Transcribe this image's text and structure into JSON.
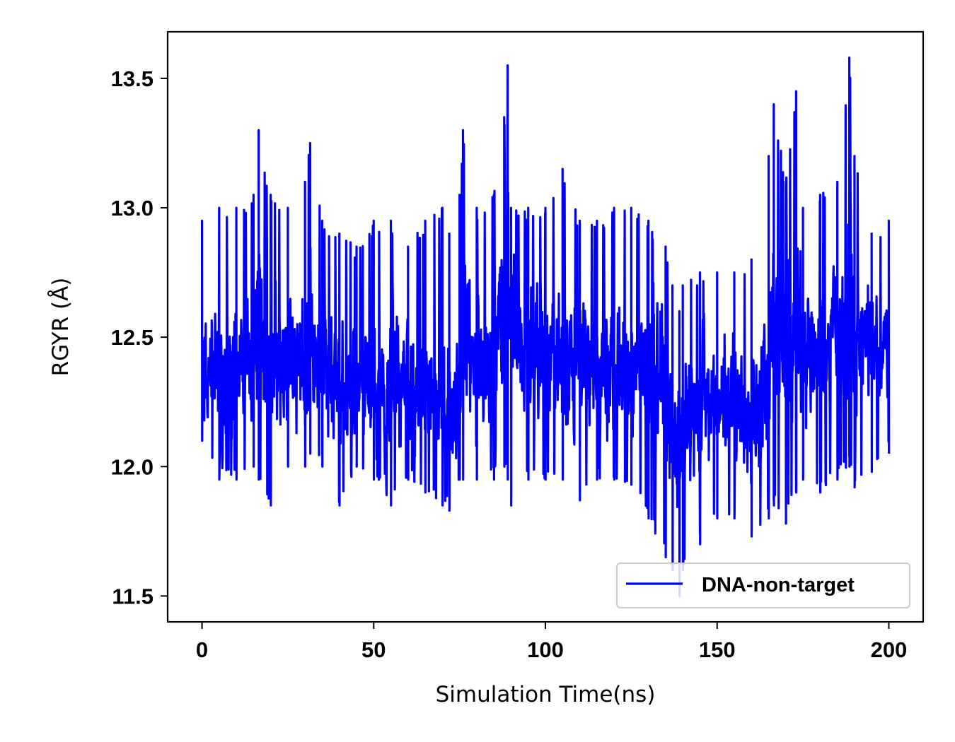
{
  "chart_data": {
    "type": "line",
    "title": "",
    "xlabel": "Simulation Time(ns)",
    "ylabel": "RGYR (Å)",
    "xlim": [
      -10,
      210
    ],
    "ylim": [
      11.4,
      13.68
    ],
    "x_ticks": [
      0,
      50,
      100,
      150,
      200
    ],
    "y_ticks": [
      11.5,
      12.0,
      12.5,
      13.0,
      13.5
    ],
    "x_tick_labels": [
      "0",
      "50",
      "100",
      "150",
      "200"
    ],
    "y_tick_labels": [
      "11.5",
      "12.0",
      "12.5",
      "13.0",
      "13.5"
    ],
    "grid": false,
    "legend_position": "lower-right",
    "series": [
      {
        "name": "DNA-non-target",
        "color": "#0000ff",
        "x": [
          0,
          5,
          10,
          15,
          16.5,
          20,
          25,
          30,
          31.5,
          35,
          40,
          45,
          50,
          55,
          60,
          65,
          70,
          72,
          75,
          76,
          80,
          85,
          88,
          89,
          90,
          95,
          100,
          105,
          110,
          115,
          120,
          125,
          130,
          135,
          137,
          139,
          140,
          145,
          150,
          155,
          160,
          165,
          166.5,
          170,
          173,
          175,
          180,
          185,
          188.5,
          190,
          195,
          200
        ],
        "y": [
          12.4,
          12.35,
          12.4,
          12.45,
          12.6,
          12.35,
          12.4,
          12.38,
          12.55,
          12.35,
          12.33,
          12.3,
          12.3,
          12.32,
          12.35,
          12.33,
          12.3,
          12.2,
          12.35,
          12.55,
          12.35,
          12.4,
          12.7,
          12.85,
          12.6,
          12.4,
          12.42,
          12.38,
          12.4,
          12.38,
          12.36,
          12.38,
          12.35,
          12.3,
          12.1,
          12.05,
          12.15,
          12.25,
          12.28,
          12.25,
          12.15,
          12.4,
          12.65,
          12.45,
          12.55,
          12.42,
          12.45,
          12.5,
          12.75,
          12.55,
          12.42,
          12.45
        ],
        "band_max": [
          12.95,
          13.0,
          13.0,
          13.05,
          13.3,
          13.05,
          13.0,
          13.1,
          13.25,
          12.95,
          12.9,
          12.85,
          12.95,
          12.95,
          12.85,
          12.95,
          13.0,
          12.9,
          13.05,
          13.3,
          13.0,
          13.05,
          13.35,
          13.55,
          13.0,
          13.0,
          13.0,
          13.15,
          12.95,
          12.95,
          13.0,
          13.0,
          12.95,
          12.85,
          12.7,
          12.6,
          12.7,
          12.75,
          12.75,
          12.75,
          12.8,
          13.2,
          13.4,
          13.1,
          13.45,
          13.0,
          13.05,
          13.1,
          13.58,
          13.2,
          12.9,
          12.95
        ],
        "band_min": [
          12.1,
          11.95,
          11.95,
          12.0,
          11.95,
          11.85,
          12.0,
          12.0,
          12.05,
          12.0,
          11.85,
          12.0,
          11.95,
          11.85,
          11.95,
          11.9,
          11.85,
          11.83,
          11.95,
          11.95,
          11.95,
          11.95,
          12.0,
          11.95,
          11.85,
          11.95,
          11.95,
          11.95,
          11.87,
          11.95,
          11.95,
          11.93,
          11.8,
          11.65,
          11.6,
          11.5,
          11.6,
          11.7,
          11.8,
          11.8,
          11.73,
          11.8,
          11.85,
          11.78,
          11.9,
          11.95,
          11.9,
          11.95,
          12.0,
          11.92,
          11.98,
          12.05
        ]
      }
    ]
  }
}
